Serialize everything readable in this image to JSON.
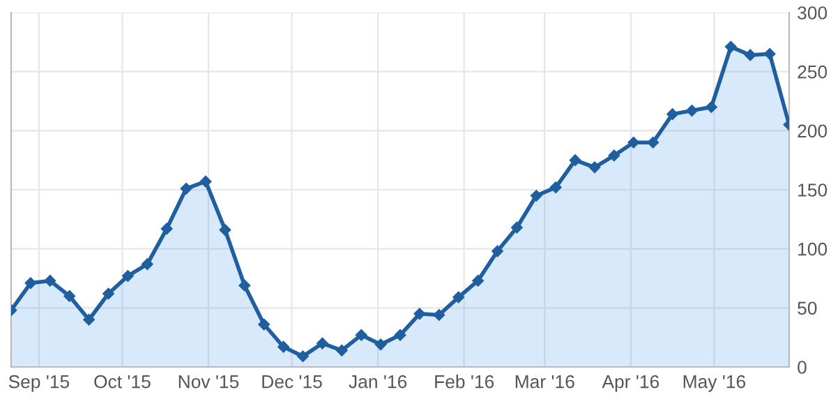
{
  "chart_data": {
    "type": "area",
    "x": [
      "2015-08-22",
      "2015-08-29",
      "2015-09-05",
      "2015-09-12",
      "2015-09-19",
      "2015-09-26",
      "2015-10-03",
      "2015-10-10",
      "2015-10-17",
      "2015-10-24",
      "2015-10-31",
      "2015-11-07",
      "2015-11-14",
      "2015-11-21",
      "2015-11-28",
      "2015-12-05",
      "2015-12-12",
      "2015-12-19",
      "2015-12-26",
      "2016-01-02",
      "2016-01-09",
      "2016-01-16",
      "2016-01-23",
      "2016-01-30",
      "2016-02-06",
      "2016-02-13",
      "2016-02-20",
      "2016-02-27",
      "2016-03-05",
      "2016-03-12",
      "2016-03-19",
      "2016-03-26",
      "2016-04-02",
      "2016-04-09",
      "2016-04-16",
      "2016-04-23",
      "2016-04-30",
      "2016-05-07",
      "2016-05-14",
      "2016-05-21",
      "2016-05-28"
    ],
    "series": [
      {
        "color": "#1f5f9f",
        "values": [
          48,
          71,
          73,
          60,
          40,
          62,
          77,
          87,
          117,
          151,
          157,
          116,
          69,
          36,
          17,
          9,
          20,
          14,
          27,
          19,
          27,
          45,
          44,
          59,
          73,
          98,
          118,
          145,
          152,
          175,
          169,
          179,
          190,
          190,
          214,
          217,
          220,
          271,
          264,
          265,
          205
        ]
      }
    ],
    "xlim": [
      "2015-08-22",
      "2016-05-28"
    ],
    "xticks": [
      {
        "value": "2015-09-01",
        "label": "Sep '15"
      },
      {
        "value": "2015-10-01",
        "label": "Oct '15"
      },
      {
        "value": "2015-11-01",
        "label": "Nov '15"
      },
      {
        "value": "2015-12-01",
        "label": "Dec '15"
      },
      {
        "value": "2016-01-01",
        "label": "Jan '16"
      },
      {
        "value": "2016-02-01",
        "label": "Feb '16"
      },
      {
        "value": "2016-03-01",
        "label": "Mar '16"
      },
      {
        "value": "2016-04-01",
        "label": "Apr '16"
      },
      {
        "value": "2016-05-01",
        "label": "May '16"
      }
    ],
    "ylim": [
      0,
      300
    ],
    "yticks": [
      0,
      50,
      100,
      150,
      200,
      250,
      300
    ],
    "grid": true,
    "marker": "diamond",
    "line_style": "solid",
    "legend": false
  }
}
